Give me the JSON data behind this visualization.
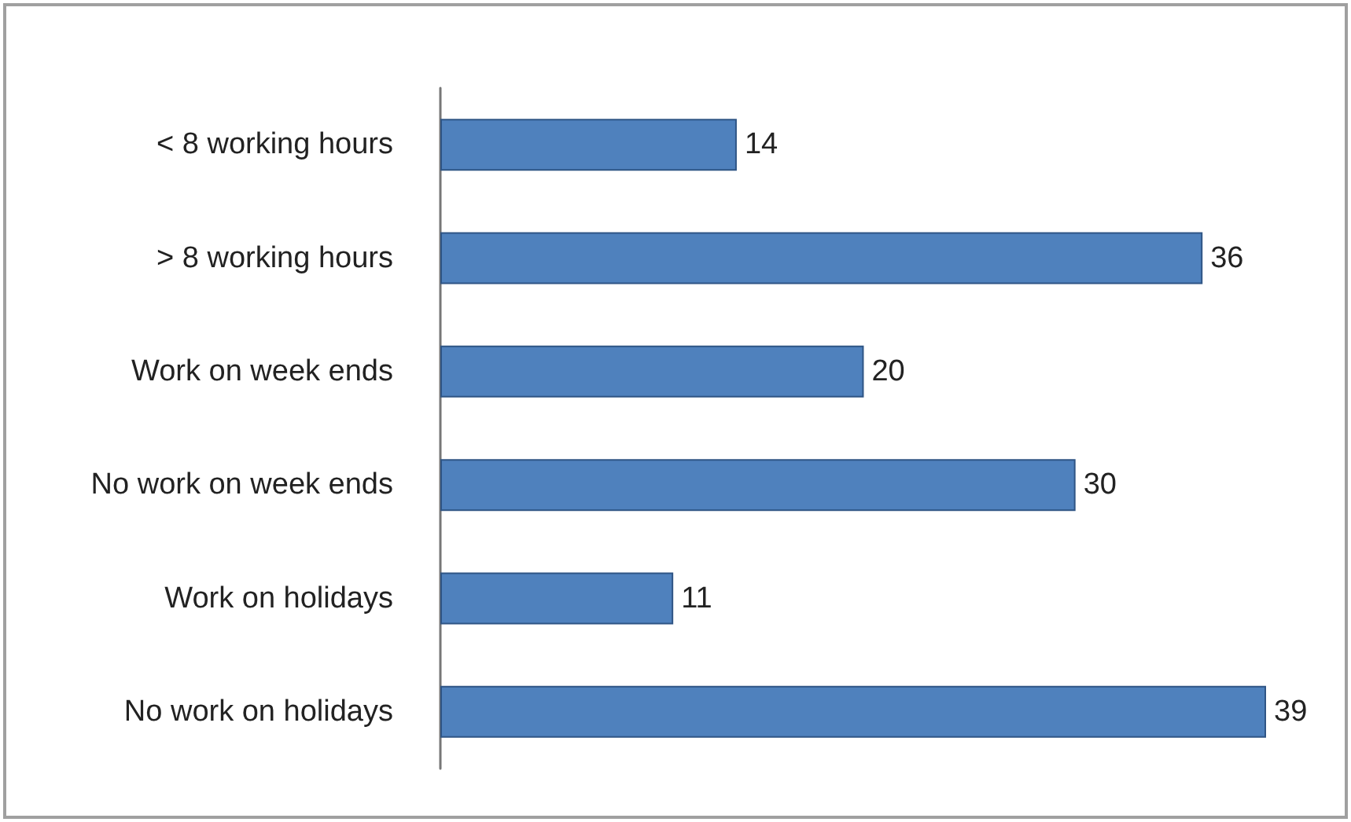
{
  "chart_data": {
    "type": "bar",
    "orientation": "horizontal",
    "categories": [
      "< 8 working hours",
      "> 8 working hours",
      "Work on week ends",
      "No work on week ends",
      "Work on holidays",
      "No work on holidays"
    ],
    "values": [
      14,
      36,
      20,
      30,
      11,
      39
    ],
    "color": "#4f81bd",
    "data_labels": true
  }
}
